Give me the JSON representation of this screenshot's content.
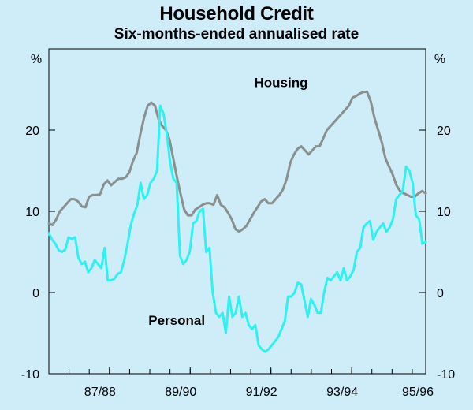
{
  "chart_data": {
    "type": "line",
    "title": "Household Credit",
    "subtitle": "Six-months-ended annualised rate",
    "y_unit_label": "%",
    "ylim": [
      -10,
      30
    ],
    "yticks": [
      -10,
      0,
      10,
      20
    ],
    "xlim": [
      0,
      112
    ],
    "x_tick_labels": [
      {
        "label": "87/88",
        "x": 18
      },
      {
        "label": "89/90",
        "x": 42
      },
      {
        "label": "91/92",
        "x": 66
      },
      {
        "label": "93/94",
        "x": 90
      },
      {
        "label": "95/96",
        "x": 114
      }
    ],
    "series": [
      {
        "name": "Housing",
        "color": "#8a8f8f",
        "annotation": {
          "x": 84,
          "y": 24.8
        },
        "values": [
          8.5,
          8.3,
          9.0,
          10.0,
          10.5,
          11.0,
          11.5,
          11.5,
          11.2,
          10.6,
          10.5,
          11.8,
          12.0,
          12.0,
          12.1,
          13.3,
          13.8,
          13.2,
          13.6,
          14.0,
          14.0,
          14.2,
          14.8,
          16.2,
          17.2,
          19.5,
          21.5,
          23.0,
          23.4,
          23.0,
          21.3,
          20.5,
          20.0,
          18.8,
          16.5,
          14.2,
          12.1,
          10.2,
          9.5,
          9.5,
          10.2,
          10.5,
          10.8,
          11.0,
          11.0,
          10.8,
          12.0,
          10.8,
          10.5,
          9.8,
          9.0,
          7.8,
          7.5,
          7.8,
          8.2,
          9.0,
          9.8,
          10.5,
          11.2,
          11.5,
          11.0,
          11.0,
          11.5,
          12.0,
          12.7,
          14.0,
          16.0,
          17.0,
          17.7,
          18.0,
          17.5,
          17.0,
          17.5,
          18.0,
          18.0,
          19.0,
          20.0,
          20.5,
          21.0,
          21.5,
          22.0,
          22.5,
          23.0,
          24.0,
          24.2,
          24.5,
          24.7,
          24.7,
          23.5,
          21.5,
          20.0,
          18.5,
          16.5,
          15.5,
          14.5,
          13.2,
          12.5,
          12.2,
          12.0,
          11.8,
          11.8,
          12.2,
          12.5,
          12.2
        ],
        "label_pos": {
          "x": 69,
          "y": 25.3
        }
      },
      {
        "name": "Personal",
        "color": "#2ef2f0",
        "values": [
          7.3,
          6.5,
          6.0,
          5.2,
          5.0,
          5.3,
          6.8,
          6.6,
          6.8,
          4.3,
          3.5,
          3.8,
          2.5,
          3.0,
          4.0,
          3.5,
          3.0,
          5.5,
          1.5,
          1.5,
          1.7,
          2.3,
          2.5,
          4.0,
          6.0,
          8.3,
          9.7,
          10.8,
          13.5,
          11.5,
          12.0,
          13.5,
          14.0,
          15.0,
          23.0,
          22.0,
          19.5,
          16.0,
          14.0,
          13.5,
          4.5,
          3.5,
          4.0,
          5.0,
          8.5,
          8.8,
          10.0,
          10.3,
          5.0,
          5.5,
          0.0,
          -2.5,
          -3.0,
          -2.5,
          -5.0,
          -0.5,
          -3.0,
          -2.5,
          -0.5,
          -3.0,
          -2.5,
          -4.0,
          -4.5,
          -4.0,
          -6.5,
          -7.0,
          -7.3,
          -7.0,
          -6.5,
          -6.0,
          -5.5,
          -4.5,
          -3.5,
          -0.5,
          -0.5,
          0.0,
          1.2,
          1.0,
          -1.0,
          -3.0,
          -0.8,
          -1.5,
          -2.5,
          -2.5,
          0.0,
          1.8,
          1.5,
          2.0,
          2.5,
          1.5,
          3.0,
          1.5,
          2.0,
          2.8,
          5.0,
          5.5,
          8.0,
          8.5,
          8.8,
          6.5,
          7.5,
          8.0,
          8.5,
          7.5,
          8.0,
          9.0,
          11.5,
          12.0,
          12.5,
          15.5,
          15.0,
          13.5,
          9.5,
          9.0,
          6.0,
          6.2
        ],
        "label_pos": {
          "x": 38,
          "y": -4.0
        }
      }
    ]
  }
}
